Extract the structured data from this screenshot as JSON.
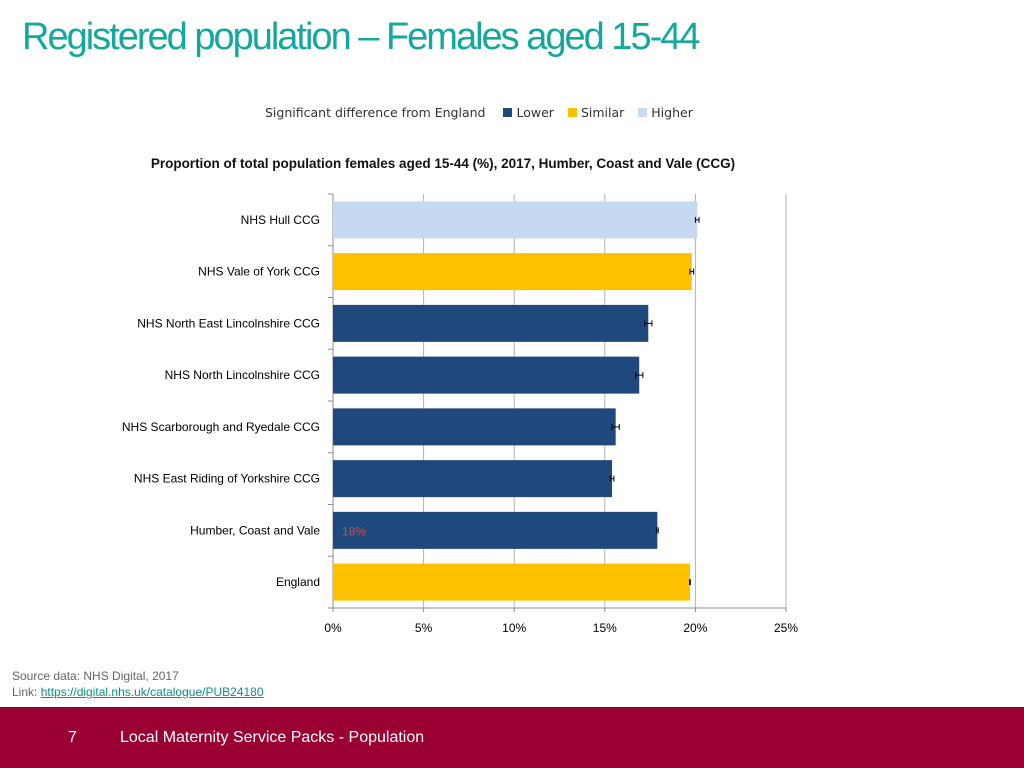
{
  "slide": {
    "title": "Registered population – Females aged 15-44",
    "source_line": "Source data: NHS Digital, 2017",
    "link_label": "Link: ",
    "link_text": "https://digital.nhs.uk/catalogue/PUB24180",
    "page_number": "7",
    "footer_text": "Local Maternity Service Packs - Population"
  },
  "legend": {
    "lead": "Significant difference from England",
    "items": [
      {
        "label": "Lower",
        "color": "#1f497d"
      },
      {
        "label": "Similar",
        "color": "#ffc000"
      },
      {
        "label": "Higher",
        "color": "#c6d9f1"
      }
    ]
  },
  "chart_data": {
    "type": "bar",
    "orientation": "horizontal",
    "title": "Proportion of total population  females aged 15-44 (%), 2017, Humber, Coast and Vale (CCG)",
    "categories": [
      "NHS Hull CCG",
      "NHS Vale of York CCG",
      "NHS North East Lincolnshire CCG",
      "NHS North Lincolnshire CCG",
      "NHS Scarborough and Ryedale CCG",
      "NHS East Riding of Yorkshire CCG",
      "Humber, Coast and Vale",
      "England"
    ],
    "values": [
      20.1,
      19.8,
      17.4,
      16.9,
      15.6,
      15.4,
      17.9,
      19.7
    ],
    "ci_lower": [
      20.0,
      19.7,
      17.2,
      16.7,
      15.4,
      15.3,
      17.85,
      19.68
    ],
    "ci_upper": [
      20.2,
      19.9,
      17.6,
      17.1,
      15.8,
      15.5,
      17.95,
      19.72
    ],
    "significance": [
      "Higher",
      "Similar",
      "Lower",
      "Lower",
      "Lower",
      "Lower",
      "Lower",
      "Similar"
    ],
    "data_labels": [
      "",
      "",
      "",
      "",
      "",
      "",
      "18%",
      ""
    ],
    "data_label_color": "#c0504d",
    "xlim": [
      0,
      25
    ],
    "xticks": [
      0,
      5,
      10,
      15,
      20,
      25
    ],
    "xtick_labels": [
      "0%",
      "5%",
      "10%",
      "15%",
      "20%",
      "25%"
    ],
    "grid": true,
    "legend_position": "top",
    "colors": {
      "Lower": "#1f497d",
      "Similar": "#ffc000",
      "Higher": "#c6d9f1"
    }
  }
}
